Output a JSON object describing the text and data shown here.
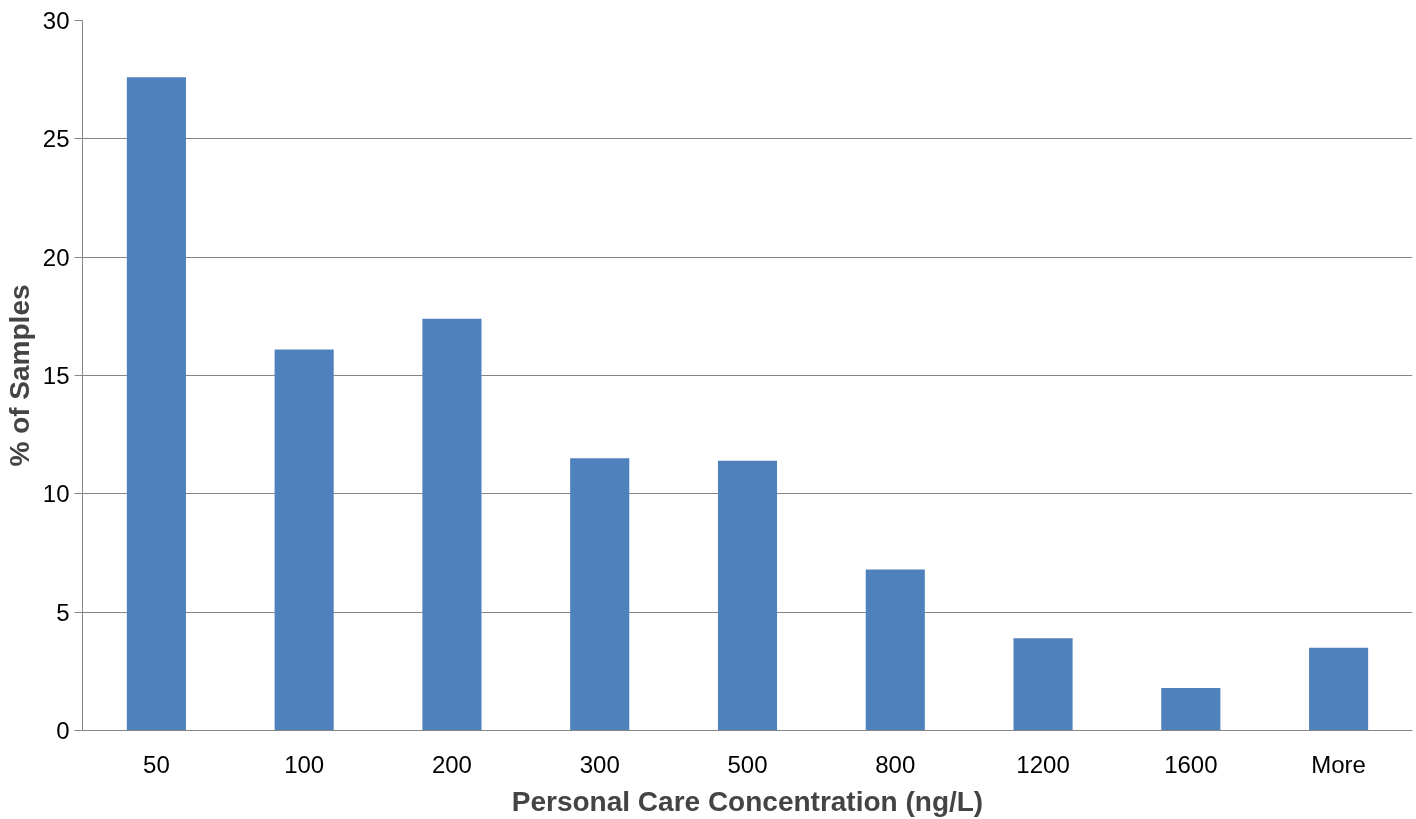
{
  "chart_data": {
    "type": "bar",
    "xlabel": "Personal Care Concentration (ng/L)",
    "ylabel": "% of Samples",
    "categories": [
      "50",
      "100",
      "200",
      "300",
      "500",
      "800",
      "1200",
      "1600",
      "More"
    ],
    "values": [
      27.6,
      16.1,
      17.4,
      11.5,
      11.4,
      6.8,
      3.9,
      1.8,
      3.5
    ],
    "color": "#4f81bd",
    "ylim": [
      0,
      30
    ],
    "yticks": [
      0,
      5,
      10,
      15,
      20,
      25,
      30
    ],
    "grid": "y"
  }
}
